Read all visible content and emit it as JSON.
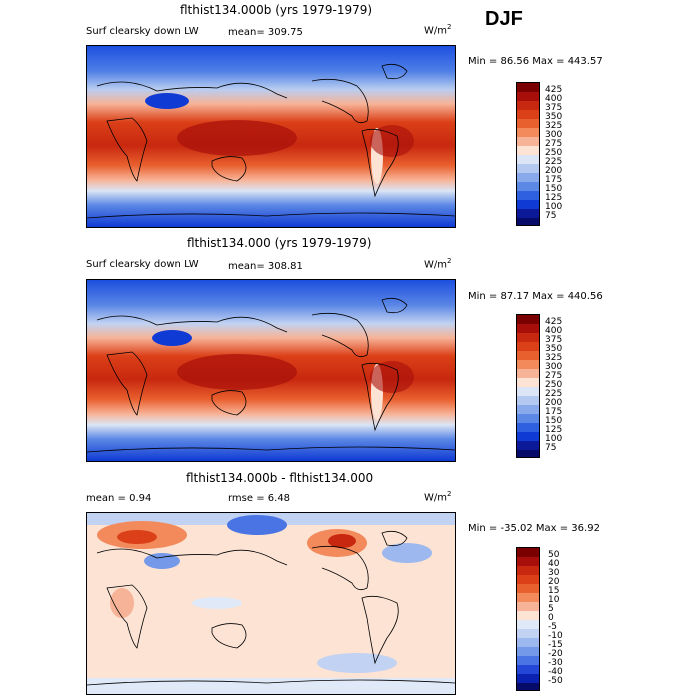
{
  "season": "DJF",
  "panels": [
    {
      "title": "flthist134.000b (yrs 1979-1979)",
      "variable": "Surf clearsky down LW",
      "stat1": "mean= 309.75",
      "units": "W/m",
      "units_sup": "2",
      "range": "Min =  86.56 Max = 443.57",
      "levels": [
        "425",
        "400",
        "375",
        "350",
        "325",
        "300",
        "275",
        "250",
        "225",
        "200",
        "175",
        "150",
        "125",
        "100",
        "75"
      ]
    },
    {
      "title": "flthist134.000 (yrs 1979-1979)",
      "variable": "Surf clearsky down LW",
      "stat1": "mean= 308.81",
      "units": "W/m",
      "units_sup": "2",
      "range": "Min =  87.17 Max = 440.56",
      "levels": [
        "425",
        "400",
        "375",
        "350",
        "325",
        "300",
        "275",
        "250",
        "225",
        "200",
        "175",
        "150",
        "125",
        "100",
        "75"
      ]
    },
    {
      "title": "flthist134.000b - flthist134.000",
      "stat1": "mean =    0.94",
      "stat2": "rmse =    6.48",
      "units": "W/m",
      "units_sup": "2",
      "range": "Min = -35.02 Max =  36.92",
      "levels": [
        "50",
        "40",
        "30",
        "20",
        "15",
        "10",
        "5",
        "0",
        "-5",
        "-10",
        "-15",
        "-20",
        "-30",
        "-40",
        "-50"
      ]
    }
  ],
  "colors": {
    "abs_scale": [
      "#7a0000",
      "#a80f0a",
      "#c8280f",
      "#db4018",
      "#e9602f",
      "#f28a5c",
      "#f7b397",
      "#fce3d4",
      "#dbe5f5",
      "#b3c9ef",
      "#88a9ea",
      "#5b87e5",
      "#2f60e0",
      "#0f3ad4",
      "#0c1a99",
      "#060b6a"
    ],
    "diff_scale": [
      "#7a0000",
      "#a80f0a",
      "#c8280f",
      "#db4018",
      "#e9602f",
      "#f28a5c",
      "#f7b397",
      "#fce3d4",
      "#e0e9f7",
      "#c1d2f2",
      "#9db8ee",
      "#7499e8",
      "#4a74e3",
      "#2447d8",
      "#0b22b0",
      "#060b6a"
    ]
  }
}
